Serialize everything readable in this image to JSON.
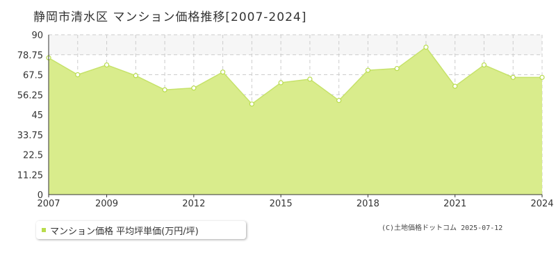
{
  "title": "静岡市清水区 マンション価格推移[2007-2024]",
  "legend": {
    "label": "マンション価格 平均坪単価(万円/坪)"
  },
  "credit": "(C)土地価格ドットコム 2025-07-12",
  "colors": {
    "fill": "#d9ec8c",
    "line": "#c6e26a",
    "marker": "#b8dc4c",
    "grid": "#cccccc",
    "band": "#f6f6f6"
  },
  "chart_data": {
    "type": "area",
    "title": "静岡市清水区 マンション価格推移[2007-2024]",
    "x": [
      2007,
      2008,
      2009,
      2010,
      2011,
      2012,
      2013,
      2014,
      2015,
      2016,
      2017,
      2018,
      2019,
      2020,
      2021,
      2022,
      2023,
      2024
    ],
    "series": [
      {
        "name": "マンション価格 平均坪単価(万円/坪)",
        "values": [
          77.0,
          67.5,
          73.0,
          67.0,
          59.0,
          60.0,
          69.0,
          51.0,
          63.0,
          65.0,
          53.0,
          70.0,
          71.0,
          83.0,
          61.0,
          73.0,
          66.0,
          66.0
        ]
      }
    ],
    "yticks": [
      "0",
      "11.25",
      "22.5",
      "33.75",
      "45",
      "56.25",
      "67.5",
      "78.75",
      "90"
    ],
    "xtick_labels": [
      "2007",
      "2009",
      "2012",
      "2015",
      "2018",
      "2021",
      "2024"
    ],
    "ylim": [
      0,
      90
    ],
    "xlim": [
      2007,
      2024
    ],
    "grid": true,
    "legend_position": "bottom-left"
  }
}
